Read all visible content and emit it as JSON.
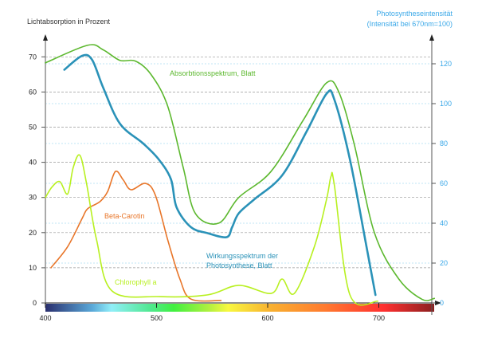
{
  "chart_data": {
    "type": "line",
    "title": "",
    "xlabel": "",
    "ylabel": "Lichtabsorption in Prozent",
    "y2label_line1": "Photosyntheseintensität",
    "y2label_line2": "(Intensität bei 670nm=100)",
    "xlim": [
      400,
      750
    ],
    "ylim": [
      0,
      75
    ],
    "y2lim": [
      0,
      130
    ],
    "xticks": [
      400,
      500,
      600,
      700
    ],
    "yticks": [
      0,
      10,
      20,
      30,
      40,
      50,
      60,
      70
    ],
    "y2ticks": [
      0,
      20,
      40,
      60,
      80,
      100,
      120
    ],
    "grid": true,
    "colors": {
      "absorption": "#5cb82e",
      "action": "#2a92b8",
      "carotene": "#e8762a",
      "chlorophyll": "#b8f020",
      "y2": "#3aa8e8",
      "grid": "#999999",
      "grid2": "#bfe4f5"
    },
    "series": [
      {
        "name": "Absorbtionsspektrum, Blatt",
        "axis": "left",
        "x": [
          400,
          438,
          452,
          467,
          481,
          495,
          510,
          524,
          535,
          556,
          574,
          603,
          632,
          653,
          664,
          678,
          696,
          718,
          739,
          750
        ],
        "y": [
          68.3,
          73.3,
          72,
          69,
          68.8,
          65,
          56,
          38.5,
          25.4,
          22.7,
          30,
          37.4,
          52,
          62.6,
          60,
          45,
          20,
          6.8,
          1,
          1.3
        ]
      },
      {
        "name_line1": "Wirkungsspektrum der",
        "name_line2": "Photosynthese, Blatt",
        "axis": "right",
        "x": [
          417,
          433,
          442,
          452,
          467,
          488,
          502,
          513,
          518,
          531,
          546,
          563,
          568,
          574,
          588,
          613,
          635,
          653,
          660,
          674,
          689,
          697
        ],
        "y": [
          117,
          124,
          122,
          108,
          90,
          80,
          72,
          62,
          48,
          38,
          35,
          33,
          38,
          45,
          52,
          64,
          86,
          105,
          102,
          72,
          28,
          4
        ]
      },
      {
        "name": "Beta-Carotin",
        "axis": "left",
        "x": [
          405,
          420,
          433,
          438,
          449,
          456,
          463,
          470,
          477,
          490,
          499,
          510,
          521,
          531,
          558
        ],
        "y": [
          10,
          16,
          24,
          26.8,
          28.8,
          31.7,
          37.4,
          35,
          32.2,
          34,
          30.6,
          18,
          6.8,
          1.1,
          0.7
        ]
      },
      {
        "name": "Chlorophyll a",
        "axis": "left",
        "x": [
          400,
          406,
          413,
          420,
          425,
          431,
          437,
          446,
          460,
          503,
          546,
          574,
          603,
          613,
          624,
          642,
          653,
          657,
          660,
          674,
          699
        ],
        "y": [
          30,
          33,
          34.5,
          31,
          38.5,
          42,
          34,
          18,
          3.4,
          1.8,
          2.3,
          5,
          2.7,
          6.8,
          2.7,
          16,
          29.5,
          36,
          33.5,
          2.3,
          0.5
        ]
      }
    ]
  }
}
